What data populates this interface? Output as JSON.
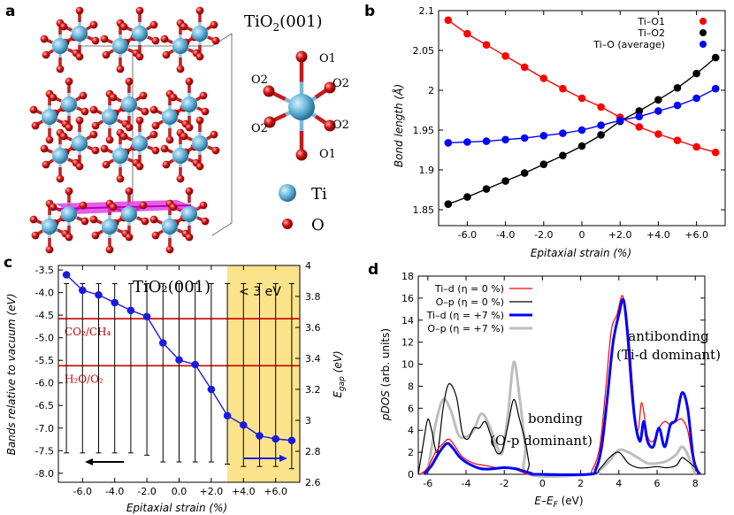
{
  "panel_a": {
    "label": "a",
    "title": "TiO",
    "title_sub": "2",
    "title_tail": "(001)",
    "atom_labels": [
      "O1",
      "O2",
      "O2",
      "O2",
      "O2",
      "O1"
    ],
    "legend": [
      {
        "name": "Ti",
        "color": "#67b5dc"
      },
      {
        "name": "O",
        "color": "#d21414"
      }
    ]
  },
  "chart_data": [
    {
      "panel": "b",
      "type": "line",
      "title": "",
      "xlabel": "Epitaxial strain (%)",
      "ylabel": "Bond length (Å)",
      "xlim": [
        -7.5,
        7.5
      ],
      "ylim": [
        1.83,
        2.1
      ],
      "x_ticks": [
        -6,
        -4,
        -2,
        0,
        2,
        4,
        6
      ],
      "x_tick_labels": [
        "-6.0",
        "-4.0",
        "-2.0",
        "0",
        "+2.0",
        "+4.0",
        "+6.0"
      ],
      "y_ticks": [
        1.85,
        1.9,
        1.95,
        2,
        2.05,
        2.1
      ],
      "y_tick_labels": [
        "1.85",
        "1.9",
        "1.95",
        "2",
        "2.05",
        "2.1"
      ],
      "x": [
        -7,
        -6,
        -5,
        -4,
        -3,
        -2,
        -1,
        0,
        1,
        2,
        3,
        4,
        5,
        6,
        7
      ],
      "series": [
        {
          "name": "Ti–O1",
          "color": "#ff0000",
          "values": [
            2.088,
            2.071,
            2.057,
            2.043,
            2.029,
            2.015,
            2.002,
            1.99,
            1.979,
            1.966,
            1.954,
            1.945,
            1.937,
            1.929,
            1.922
          ]
        },
        {
          "name": "Ti–O2",
          "color": "#000000",
          "values": [
            1.857,
            1.866,
            1.876,
            1.886,
            1.896,
            1.907,
            1.918,
            1.93,
            1.944,
            1.961,
            1.974,
            1.988,
            2.003,
            2.021,
            2.041
          ]
        },
        {
          "name": "Ti–O (average)",
          "color": "#0000ff",
          "values": [
            1.934,
            1.935,
            1.936,
            1.938,
            1.94,
            1.943,
            1.946,
            1.95,
            1.956,
            1.962,
            1.967,
            1.974,
            1.981,
            1.99,
            2.002
          ]
        }
      ],
      "legend_position": "top-right"
    },
    {
      "panel": "c",
      "type": "line",
      "title": "TiO₂(001)",
      "xlabel": "Epitaxial strain (%)",
      "ylabel": "Bands relative to vacuum (eV)",
      "ylabel_right": "E_gap (eV)",
      "xlim": [
        -7.5,
        7.5
      ],
      "ylim": [
        -8.2,
        -3.4
      ],
      "ylim_right": [
        2.6,
        4.0
      ],
      "x_ticks": [
        -6,
        -4,
        -2,
        0,
        2,
        4,
        6
      ],
      "x_tick_labels": [
        "-6.0",
        "-4.0",
        "-2.0",
        "0.0",
        "+2.0",
        "+4.0",
        "+6.0"
      ],
      "y_ticks": [
        -8,
        -7.5,
        -7,
        -6.5,
        -6,
        -5.5,
        -5,
        -4.5,
        -4,
        -3.5
      ],
      "y_tick_labels": [
        "-8.0",
        "-7.5",
        "-7.0",
        "-6.5",
        "-6.0",
        "-5.5",
        "-5.0",
        "-4.5",
        "-4.0",
        "-3.5"
      ],
      "y_ticks_right": [
        2.6,
        2.8,
        3.0,
        3.2,
        3.4,
        3.6,
        3.8,
        4.0
      ],
      "y_tick_labels_right": [
        "2.6",
        "2.8",
        "3",
        "3.2",
        "3.4",
        "3.6",
        "3.8",
        "4"
      ],
      "x": [
        -7,
        -6,
        -5,
        -4,
        -3,
        -2,
        -1,
        0,
        1,
        2,
        3,
        4,
        5,
        6,
        7
      ],
      "series": [
        {
          "name": "E_gap",
          "color": "#1a1adf",
          "values": [
            3.94,
            3.84,
            3.81,
            3.76,
            3.71,
            3.67,
            3.5,
            3.39,
            3.36,
            3.2,
            3.03,
            2.97,
            2.9,
            2.88,
            2.87
          ]
        }
      ],
      "error_bar_top": -3.8,
      "error_bar_bottom": [
        -7.55,
        -7.55,
        -7.55,
        -7.55,
        -7.55,
        -7.6,
        -7.75,
        -7.75,
        -7.75,
        -7.75,
        -7.8,
        -7.85,
        -7.85,
        -7.85,
        -7.9
      ],
      "reference_lines": [
        {
          "label": "CO₂/CH₄",
          "value": -4.58,
          "color": "#cc0000"
        },
        {
          "label": "H₂O/O₂",
          "value": -5.62,
          "color": "#cc0000"
        }
      ],
      "highlight": {
        "x_range": [
          3,
          7.5
        ],
        "color": "#fae38a",
        "label": "< 3 eV"
      }
    },
    {
      "panel": "d",
      "type": "line",
      "title": "",
      "xlabel": "E–E_F (eV)",
      "ylabel": "pDOS (arb. units)",
      "xlim": [
        -6.5,
        8.5
      ],
      "ylim": [
        0,
        18
      ],
      "x_ticks": [
        -6,
        -4,
        -2,
        0,
        2,
        4,
        6,
        8
      ],
      "x_tick_labels": [
        "-6",
        "-4",
        "-2",
        "0",
        "2",
        "4",
        "6",
        "8"
      ],
      "y_ticks": [
        0,
        2,
        4,
        6,
        8,
        10,
        12,
        14,
        16,
        18
      ],
      "y_tick_labels": [
        "0",
        "2",
        "4",
        "6",
        "8",
        "10",
        "12",
        "14",
        "16",
        "18"
      ],
      "series": [
        {
          "name": "Ti–d (η = 0 %)",
          "color": "#ff0000",
          "width": 1.2,
          "x": [
            -6.4,
            -6,
            -5.6,
            -5.2,
            -4.9,
            -4.6,
            -4.2,
            -3.6,
            -3,
            -2.4,
            -1.9,
            -1.5,
            -1.2,
            -0.9,
            -0.6,
            2.2,
            2.6,
            3.0,
            3.3,
            3.6,
            3.9,
            4.2,
            4.4,
            4.7,
            5.0,
            5.2,
            5.5,
            5.8,
            6.1,
            6.4,
            6.7,
            7.0,
            7.3,
            7.6,
            7.8,
            8.0,
            8.3
          ],
          "values": [
            0,
            0.6,
            2.0,
            2.8,
            3.2,
            2.6,
            1.6,
            1.0,
            0.8,
            0.6,
            0.6,
            0.5,
            0.3,
            0.1,
            0,
            0,
            0.4,
            2.5,
            7.5,
            13.0,
            14.5,
            16.2,
            13.0,
            6.5,
            4.0,
            6.5,
            3.5,
            3.0,
            4.2,
            4.8,
            4.5,
            4.8,
            5.0,
            4.0,
            2.0,
            0.5,
            0
          ]
        },
        {
          "name": "O–p (η = 0 %)",
          "color": "#000000",
          "width": 1.2,
          "x": [
            -6.5,
            -6.2,
            -6.0,
            -5.8,
            -5.5,
            -5.2,
            -4.9,
            -4.5,
            -4.2,
            -3.9,
            -3.6,
            -3.3,
            -3.0,
            -2.7,
            -2.4,
            -2.1,
            -1.8,
            -1.5,
            -1.2,
            -0.9,
            -0.7,
            -0.5,
            2.5,
            3.0,
            3.5,
            4.0,
            4.5,
            5.0,
            5.5,
            6.0,
            6.5,
            7.0,
            7.3,
            7.6,
            8.0,
            8.3
          ],
          "values": [
            0,
            3.2,
            5.0,
            4.0,
            2.0,
            6.0,
            8.2,
            7.0,
            3.8,
            3.2,
            4.2,
            4.2,
            4.8,
            3.5,
            2.0,
            2.2,
            4.5,
            6.8,
            5.0,
            3.0,
            1.0,
            0,
            0,
            0.5,
            1.5,
            2.0,
            1.0,
            0.6,
            0.6,
            0.7,
            0.6,
            0.8,
            1.5,
            1.2,
            0.6,
            0
          ]
        },
        {
          "name": "Ti–d (η = +7 %)",
          "color": "#0000ff",
          "width": 3,
          "x": [
            -6.2,
            -5.8,
            -5.4,
            -5.0,
            -4.7,
            -4.3,
            -3.8,
            -3.2,
            -2.6,
            -2.0,
            -1.4,
            -1.0,
            -0.6,
            -0.3,
            2.4,
            2.8,
            3.1,
            3.4,
            3.7,
            4.0,
            4.25,
            4.5,
            4.8,
            5.1,
            5.3,
            5.5,
            5.8,
            6.1,
            6.4,
            6.7,
            7.0,
            7.3,
            7.6,
            7.9,
            8.2
          ],
          "values": [
            0,
            0.8,
            2.0,
            2.8,
            2.4,
            1.5,
            0.9,
            0.5,
            0.5,
            0.6,
            0.5,
            0.3,
            0.1,
            0,
            0,
            0.5,
            2.5,
            7.0,
            12.0,
            14.5,
            15.8,
            12.0,
            5.5,
            3.0,
            4.8,
            3.0,
            2.5,
            4.2,
            2.5,
            4.5,
            5.0,
            7.4,
            6.0,
            1.5,
            0
          ]
        },
        {
          "name": "O–p (η = +7 %)",
          "color": "#bdbdbd",
          "width": 3,
          "x": [
            -6.4,
            -6.0,
            -5.6,
            -5.2,
            -4.8,
            -4.4,
            -4.0,
            -3.6,
            -3.2,
            -2.8,
            -2.4,
            -2.1,
            -1.8,
            -1.5,
            -1.2,
            -0.9,
            -0.7,
            2.6,
            3.0,
            3.5,
            4.0,
            4.5,
            5.0,
            5.5,
            6.0,
            6.5,
            7.0,
            7.3,
            7.6,
            8.0
          ],
          "values": [
            0,
            0.6,
            4.5,
            6.8,
            5.8,
            3.6,
            3.4,
            4.0,
            5.5,
            4.5,
            2.6,
            2.0,
            5.5,
            10.2,
            7.0,
            2.5,
            0,
            0,
            0.4,
            1.2,
            2.2,
            2.0,
            1.5,
            1.0,
            1.0,
            1.2,
            1.8,
            2.5,
            1.8,
            0
          ]
        }
      ],
      "annotations": [
        {
          "text": "bonding"
        },
        {
          "text": "(O-p dominant)"
        },
        {
          "text": "antibonding"
        },
        {
          "text": "(Ti-d dominant)"
        }
      ],
      "legend_position": "top-left"
    }
  ]
}
